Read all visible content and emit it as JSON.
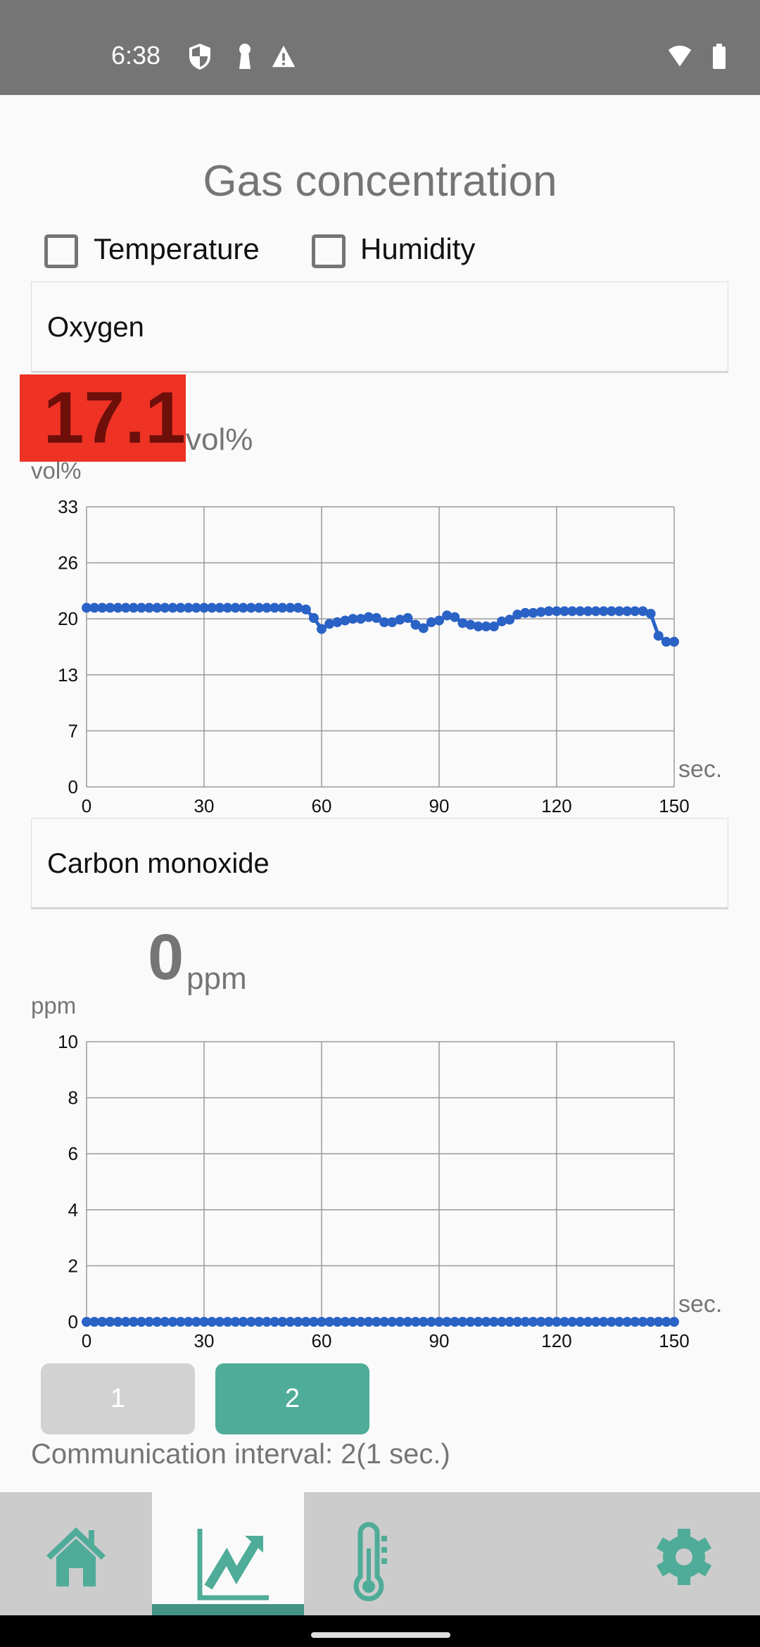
{
  "status_bar": {
    "time": "6:38",
    "icons": [
      "shield-icon",
      "keyhole-icon",
      "warning-icon",
      "wifi-icon",
      "battery-icon"
    ]
  },
  "title": "Gas concentration",
  "checkboxes": [
    {
      "label": "Temperature",
      "checked": false
    },
    {
      "label": "Humidity",
      "checked": false
    }
  ],
  "oxygen": {
    "selector": "Oxygen",
    "value": "17.1",
    "unit": "vol%",
    "alarm_color": "#ee3224"
  },
  "co": {
    "selector": "Carbon monoxide",
    "value": "0",
    "unit": "ppm"
  },
  "chart_data": [
    {
      "type": "line",
      "ylabel": "vol%",
      "xlabel": "sec.",
      "xlim": [
        0,
        150
      ],
      "ylim": [
        0,
        33
      ],
      "xticks": [
        "0",
        "30",
        "60",
        "90",
        "120",
        "150"
      ],
      "yticks": [
        "0",
        "7",
        "13",
        "20",
        "26",
        "33"
      ],
      "grid": true,
      "color": "#2a62c6",
      "x": [
        0,
        2,
        4,
        6,
        8,
        10,
        12,
        14,
        16,
        18,
        20,
        22,
        24,
        26,
        28,
        30,
        32,
        34,
        36,
        38,
        40,
        42,
        44,
        46,
        48,
        50,
        52,
        54,
        56,
        58,
        60,
        62,
        64,
        66,
        68,
        70,
        72,
        74,
        76,
        78,
        80,
        82,
        84,
        86,
        88,
        90,
        92,
        94,
        96,
        98,
        100,
        102,
        104,
        106,
        108,
        110,
        112,
        114,
        116,
        118,
        120,
        122,
        124,
        126,
        128,
        130,
        132,
        134,
        136,
        138,
        140,
        142,
        144,
        146,
        148,
        150
      ],
      "y": [
        21.1,
        21.1,
        21.1,
        21.1,
        21.1,
        21.1,
        21.1,
        21.1,
        21.1,
        21.1,
        21.1,
        21.1,
        21.1,
        21.1,
        21.1,
        21.1,
        21.1,
        21.1,
        21.1,
        21.1,
        21.1,
        21.1,
        21.1,
        21.1,
        21.1,
        21.1,
        21.1,
        21.1,
        20.9,
        19.9,
        18.6,
        19.2,
        19.4,
        19.6,
        19.8,
        19.8,
        20.0,
        19.9,
        19.4,
        19.4,
        19.7,
        19.9,
        19.1,
        18.7,
        19.4,
        19.6,
        20.2,
        20.0,
        19.3,
        19.1,
        18.9,
        18.9,
        18.9,
        19.5,
        19.7,
        20.3,
        20.5,
        20.5,
        20.6,
        20.7,
        20.7,
        20.7,
        20.7,
        20.7,
        20.7,
        20.7,
        20.7,
        20.7,
        20.7,
        20.7,
        20.7,
        20.7,
        20.4,
        17.8,
        17.1,
        17.1
      ]
    },
    {
      "type": "line",
      "ylabel": "ppm",
      "xlabel": "sec.",
      "xlim": [
        0,
        150
      ],
      "ylim": [
        0,
        10
      ],
      "xticks": [
        "0",
        "30",
        "60",
        "90",
        "120",
        "150"
      ],
      "yticks": [
        "0",
        "2",
        "4",
        "6",
        "8",
        "10"
      ],
      "grid": true,
      "color": "#2a62c6",
      "x": [
        0,
        2,
        4,
        6,
        8,
        10,
        12,
        14,
        16,
        18,
        20,
        22,
        24,
        26,
        28,
        30,
        32,
        34,
        36,
        38,
        40,
        42,
        44,
        46,
        48,
        50,
        52,
        54,
        56,
        58,
        60,
        62,
        64,
        66,
        68,
        70,
        72,
        74,
        76,
        78,
        80,
        82,
        84,
        86,
        88,
        90,
        92,
        94,
        96,
        98,
        100,
        102,
        104,
        106,
        108,
        110,
        112,
        114,
        116,
        118,
        120,
        122,
        124,
        126,
        128,
        130,
        132,
        134,
        136,
        138,
        140,
        142,
        144,
        146,
        148,
        150
      ],
      "y": [
        0,
        0,
        0,
        0,
        0,
        0,
        0,
        0,
        0,
        0,
        0,
        0,
        0,
        0,
        0,
        0,
        0,
        0,
        0,
        0,
        0,
        0,
        0,
        0,
        0,
        0,
        0,
        0,
        0,
        0,
        0,
        0,
        0,
        0,
        0,
        0,
        0,
        0,
        0,
        0,
        0,
        0,
        0,
        0,
        0,
        0,
        0,
        0,
        0,
        0,
        0,
        0,
        0,
        0,
        0,
        0,
        0,
        0,
        0,
        0,
        0,
        0,
        0,
        0,
        0,
        0,
        0,
        0,
        0,
        0,
        0,
        0,
        0,
        0,
        0,
        0
      ]
    }
  ],
  "interval_buttons": [
    {
      "label": "1",
      "selected": false
    },
    {
      "label": "2",
      "selected": true
    }
  ],
  "interval_text": "Communication interval: 2(1 sec.)",
  "nav": {
    "tabs": [
      "home-icon",
      "chart-icon",
      "thermometer-icon",
      "gear-icon"
    ],
    "selected": 1,
    "accent": "#4fac98"
  }
}
